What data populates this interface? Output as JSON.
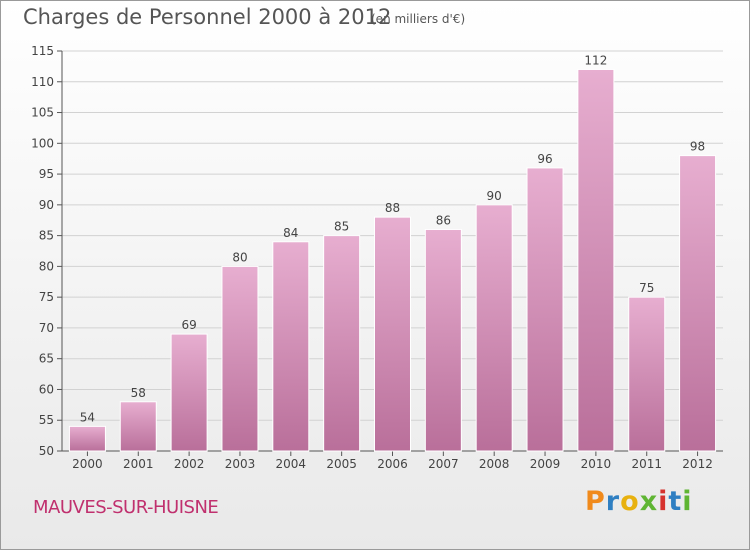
{
  "header": {
    "title": "Charges de Personnel 2000 à 2012",
    "subtitle": "(en milliers d'€)"
  },
  "footer": {
    "commune": "MAUVES-SUR-HUISNE",
    "logo_text": "Proxiti"
  },
  "colors": {
    "bar_top": "#e7aed0",
    "bar_bottom": "#b96f9a",
    "commune_text": "#c0306e",
    "logo_letters": [
      "#f08a1c",
      "#2f7fc2",
      "#e8b10f",
      "#5fb533",
      "#d6322d",
      "#2f7fc2",
      "#5fb533"
    ]
  },
  "chart_data": {
    "type": "bar",
    "title": "Charges de Personnel 2000 à 2012",
    "subtitle": "(en milliers d'€)",
    "xlabel": "",
    "ylabel": "",
    "categories": [
      "2000",
      "2001",
      "2002",
      "2003",
      "2004",
      "2005",
      "2006",
      "2007",
      "2008",
      "2009",
      "2010",
      "2011",
      "2012"
    ],
    "values": [
      54,
      58,
      69,
      80,
      84,
      85,
      88,
      86,
      90,
      96,
      112,
      75,
      98
    ],
    "ylim": [
      50,
      115
    ],
    "yticks": [
      50,
      55,
      60,
      65,
      70,
      75,
      80,
      85,
      90,
      95,
      100,
      105,
      110,
      115
    ],
    "grid": true,
    "legend": "none"
  }
}
